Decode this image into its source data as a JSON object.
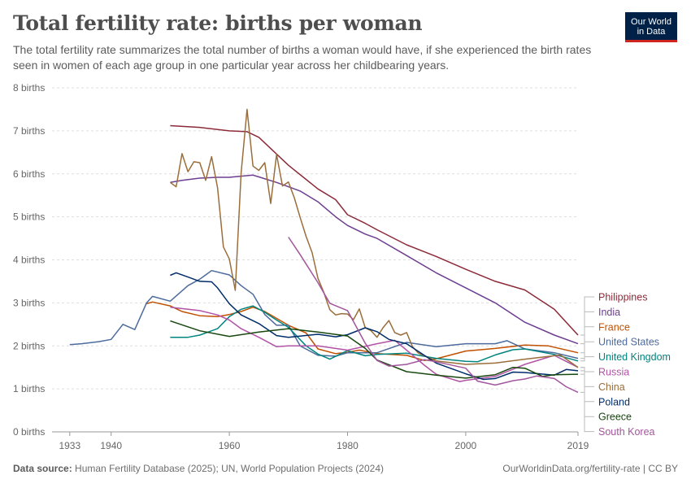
{
  "header": {
    "title": "Total fertility rate: births per woman",
    "subtitle": "The total fertility rate summarizes the total number of births a woman would have, if she experienced the birth rates seen in women of each age group in one particular year across her childbearing years.",
    "logo_line1": "Our World",
    "logo_line2": "in Data"
  },
  "footer": {
    "source_label": "Data source:",
    "source_text": "Human Fertility Database (2025); UN, World Population Projects (2024)",
    "url_license": "OurWorldinData.org/fertility-rate | CC BY"
  },
  "colors": {
    "background": "#ffffff",
    "grid": "#dddddd",
    "logo_bg": "#002147",
    "logo_accent": "#ce261e"
  },
  "chart_data": {
    "type": "line",
    "title": "Total fertility rate: births per woman",
    "xlabel": "",
    "ylabel": "",
    "xlim": [
      1930,
      2019
    ],
    "ylim": [
      0,
      8
    ],
    "x_ticks": [
      "1933",
      "1940",
      "1960",
      "1980",
      "2000",
      "2019"
    ],
    "x_tick_values": [
      1933,
      1940,
      1960,
      1980,
      2000,
      2019
    ],
    "y_ticks": [
      "0 births",
      "1 births",
      "2 births",
      "3 births",
      "4 births",
      "5 births",
      "6 births",
      "7 births",
      "8 births"
    ],
    "y_tick_values": [
      0,
      1,
      2,
      3,
      4,
      5,
      6,
      7,
      8
    ],
    "grid": "horizontal dashed",
    "legend": "right, labels at line ends",
    "series": [
      {
        "name": "Philippines",
        "color": "#8c2a39",
        "x": [
          1950,
          1955,
          1960,
          1963,
          1965,
          1970,
          1975,
          1978,
          1980,
          1983,
          1985,
          1990,
          1995,
          2000,
          2005,
          2010,
          2015,
          2019
        ],
        "values": [
          7.12,
          7.08,
          7.0,
          6.98,
          6.85,
          6.2,
          5.65,
          5.4,
          5.05,
          4.85,
          4.7,
          4.35,
          4.08,
          3.78,
          3.5,
          3.3,
          2.85,
          2.25
        ]
      },
      {
        "name": "India",
        "color": "#6d3e91",
        "x": [
          1950,
          1952,
          1955,
          1958,
          1960,
          1964,
          1965,
          1968,
          1970,
          1972,
          1975,
          1978,
          1980,
          1983,
          1985,
          1990,
          1995,
          2000,
          2005,
          2010,
          2015,
          2019
        ],
        "values": [
          5.8,
          5.85,
          5.9,
          5.92,
          5.92,
          5.97,
          5.93,
          5.8,
          5.7,
          5.6,
          5.35,
          5.0,
          4.8,
          4.6,
          4.5,
          4.1,
          3.7,
          3.35,
          3.0,
          2.55,
          2.25,
          2.05
        ]
      },
      {
        "name": "France",
        "color": "#c15000",
        "x": [
          1946,
          1947,
          1950,
          1952,
          1955,
          1958,
          1960,
          1962,
          1964,
          1966,
          1970,
          1973,
          1975,
          1978,
          1980,
          1982,
          1985,
          1990,
          1993,
          1995,
          2000,
          2005,
          2010,
          2014,
          2019
        ],
        "values": [
          2.98,
          3.02,
          2.93,
          2.8,
          2.7,
          2.68,
          2.73,
          2.8,
          2.9,
          2.8,
          2.48,
          2.3,
          1.93,
          1.82,
          1.85,
          1.9,
          1.82,
          1.78,
          1.66,
          1.7,
          1.88,
          1.94,
          2.02,
          2.0,
          1.84
        ]
      },
      {
        "name": "United States",
        "color": "#4c6a9c",
        "x": [
          1933,
          1935,
          1938,
          1940,
          1942,
          1944,
          1946,
          1947,
          1950,
          1953,
          1955,
          1957,
          1960,
          1962,
          1964,
          1966,
          1968,
          1970,
          1972,
          1975,
          1978,
          1980,
          1985,
          1990,
          1995,
          2000,
          2005,
          2007,
          2010,
          2015,
          2019
        ],
        "values": [
          2.03,
          2.05,
          2.1,
          2.15,
          2.5,
          2.38,
          3.0,
          3.15,
          3.04,
          3.4,
          3.55,
          3.75,
          3.65,
          3.4,
          3.2,
          2.73,
          2.48,
          2.48,
          2.0,
          1.78,
          1.76,
          1.84,
          1.84,
          2.08,
          1.98,
          2.05,
          2.05,
          2.12,
          1.93,
          1.84,
          1.71
        ]
      },
      {
        "name": "United Kingdom",
        "color": "#00847e",
        "x": [
          1950,
          1953,
          1955,
          1958,
          1960,
          1962,
          1964,
          1966,
          1968,
          1970,
          1973,
          1975,
          1977,
          1980,
          1983,
          1985,
          1990,
          1995,
          2000,
          2002,
          2005,
          2008,
          2010,
          2015,
          2019
        ],
        "values": [
          2.2,
          2.2,
          2.25,
          2.4,
          2.68,
          2.85,
          2.93,
          2.78,
          2.6,
          2.43,
          2.0,
          1.81,
          1.69,
          1.89,
          1.77,
          1.8,
          1.83,
          1.71,
          1.64,
          1.63,
          1.79,
          1.91,
          1.93,
          1.8,
          1.65
        ]
      },
      {
        "name": "Russia",
        "color": "#b253a6",
        "x": [
          1950,
          1955,
          1958,
          1960,
          1962,
          1965,
          1968,
          1970,
          1975,
          1980,
          1985,
          1988,
          1990,
          1993,
          1995,
          1999,
          2000,
          2005,
          2010,
          2015,
          2019
        ],
        "values": [
          2.9,
          2.82,
          2.72,
          2.6,
          2.4,
          2.2,
          1.98,
          2.0,
          2.0,
          1.9,
          2.05,
          2.13,
          1.9,
          1.55,
          1.34,
          1.17,
          1.2,
          1.29,
          1.57,
          1.78,
          1.5
        ]
      },
      {
        "name": "China",
        "color": "#9a6e3a",
        "x": [
          1950,
          1951,
          1952,
          1953,
          1954,
          1955,
          1956,
          1957,
          1958,
          1959,
          1960,
          1961,
          1962,
          1963,
          1964,
          1965,
          1966,
          1967,
          1968,
          1969,
          1970,
          1971,
          1972,
          1973,
          1974,
          1975,
          1976,
          1977,
          1978,
          1979,
          1980,
          1981,
          1982,
          1983,
          1984,
          1985,
          1986,
          1987,
          1988,
          1989,
          1990,
          1991,
          1992,
          1995,
          2000,
          2005,
          2010,
          2015,
          2016,
          2019
        ],
        "values": [
          5.8,
          5.7,
          6.47,
          6.05,
          6.28,
          6.26,
          5.85,
          6.4,
          5.68,
          4.3,
          4.02,
          3.29,
          6.02,
          7.5,
          6.18,
          6.08,
          6.26,
          5.31,
          6.45,
          5.72,
          5.81,
          5.44,
          4.98,
          4.54,
          4.17,
          3.57,
          3.24,
          2.84,
          2.72,
          2.75,
          2.74,
          2.61,
          2.86,
          2.42,
          2.35,
          2.2,
          2.42,
          2.59,
          2.31,
          2.25,
          2.31,
          1.98,
          1.83,
          1.65,
          1.57,
          1.6,
          1.69,
          1.77,
          1.79,
          1.5
        ]
      },
      {
        "name": "Poland",
        "color": "#002d6a",
        "x": [
          1950,
          1951,
          1953,
          1955,
          1957,
          1958,
          1960,
          1962,
          1965,
          1968,
          1970,
          1975,
          1978,
          1980,
          1983,
          1985,
          1987,
          1990,
          1995,
          2000,
          2003,
          2005,
          2008,
          2010,
          2015,
          2017,
          2019
        ],
        "values": [
          3.64,
          3.7,
          3.6,
          3.5,
          3.49,
          3.35,
          2.98,
          2.72,
          2.52,
          2.24,
          2.2,
          2.27,
          2.21,
          2.26,
          2.42,
          2.33,
          2.15,
          2.05,
          1.6,
          1.35,
          1.22,
          1.24,
          1.39,
          1.38,
          1.32,
          1.45,
          1.42
        ]
      },
      {
        "name": "Greece",
        "color": "#18470f",
        "x": [
          1950,
          1955,
          1960,
          1965,
          1970,
          1975,
          1980,
          1983,
          1985,
          1990,
          1995,
          2000,
          2005,
          2008,
          2010,
          2013,
          2015,
          2019
        ],
        "values": [
          2.58,
          2.35,
          2.22,
          2.32,
          2.4,
          2.32,
          2.23,
          1.94,
          1.67,
          1.4,
          1.32,
          1.25,
          1.33,
          1.5,
          1.48,
          1.29,
          1.33,
          1.34
        ]
      },
      {
        "name": "South Korea",
        "color": "#a2559c",
        "x": [
          1970,
          1972,
          1975,
          1977,
          1980,
          1983,
          1985,
          1987,
          1990,
          1993,
          1995,
          2000,
          2002,
          2005,
          2008,
          2010,
          2012,
          2015,
          2017,
          2019
        ],
        "values": [
          4.53,
          4.12,
          3.47,
          2.99,
          2.82,
          2.06,
          1.66,
          1.53,
          1.57,
          1.68,
          1.63,
          1.48,
          1.18,
          1.09,
          1.19,
          1.23,
          1.3,
          1.24,
          1.05,
          0.92
        ]
      }
    ]
  }
}
